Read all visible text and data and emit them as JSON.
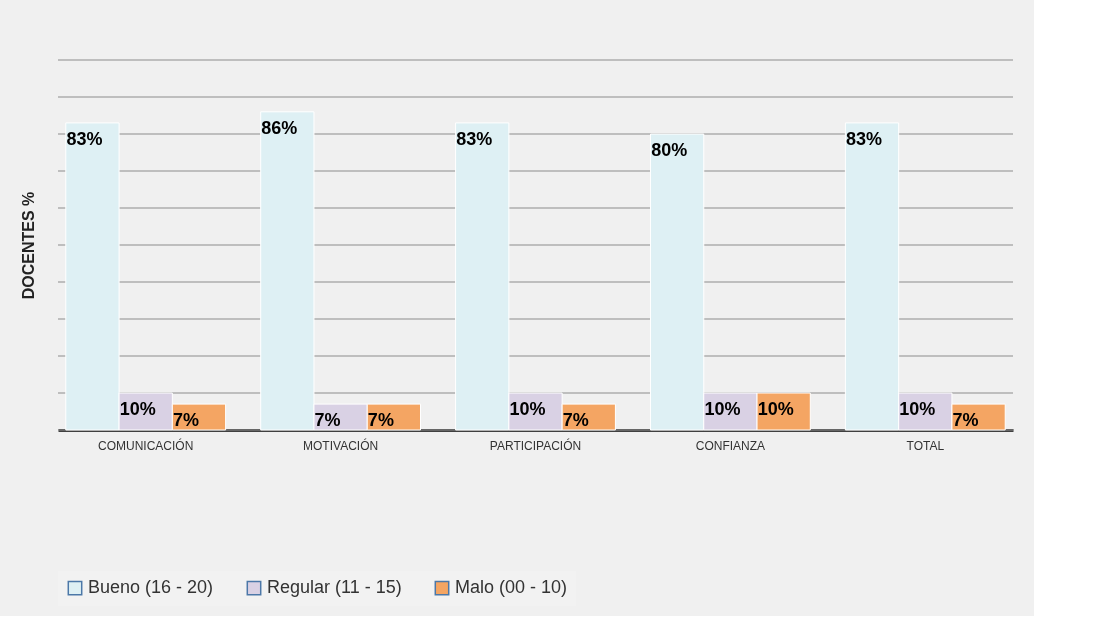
{
  "chart_data": {
    "type": "bar",
    "ylabel": "DOCENTES %",
    "categories": [
      "COMUNICACIÓN",
      "MOTIVACIÓN",
      "PARTICIPACIÓN",
      "CONFIANZA",
      "TOTAL"
    ],
    "series": [
      {
        "name": "Bueno (16 - 20)",
        "color": "#def0f4",
        "values": [
          83,
          86,
          83,
          80,
          83
        ],
        "value_labels": [
          "83%",
          "86%",
          "83%",
          "80%",
          "83%"
        ]
      },
      {
        "name": "Regular (11 - 15)",
        "color": "#d9d1e4",
        "values": [
          10,
          7,
          10,
          10,
          10
        ],
        "value_labels": [
          "10%",
          "7%",
          "10%",
          "10%",
          "10%"
        ]
      },
      {
        "name": "Malo (00 - 10)",
        "color": "#f4a563",
        "values": [
          7,
          7,
          7,
          10,
          7
        ],
        "value_labels": [
          "7%",
          "7%",
          "7%",
          "10%",
          "7%"
        ]
      }
    ],
    "ylim": [
      0,
      100
    ],
    "yticks": [
      {
        "value": 0,
        "label": null
      },
      {
        "value": 10,
        "label": null
      },
      {
        "value": 20,
        "label": null
      },
      {
        "value": 30,
        "label": null
      },
      {
        "value": 40,
        "label": null
      },
      {
        "value": 50,
        "label": null
      },
      {
        "value": 60,
        "label": null
      },
      {
        "value": 70,
        "label": null
      },
      {
        "value": 80,
        "label": null
      },
      {
        "value": 90,
        "label": null
      },
      {
        "value": 100,
        "label": null
      }
    ],
    "grid": "y",
    "legend": "bottom"
  }
}
